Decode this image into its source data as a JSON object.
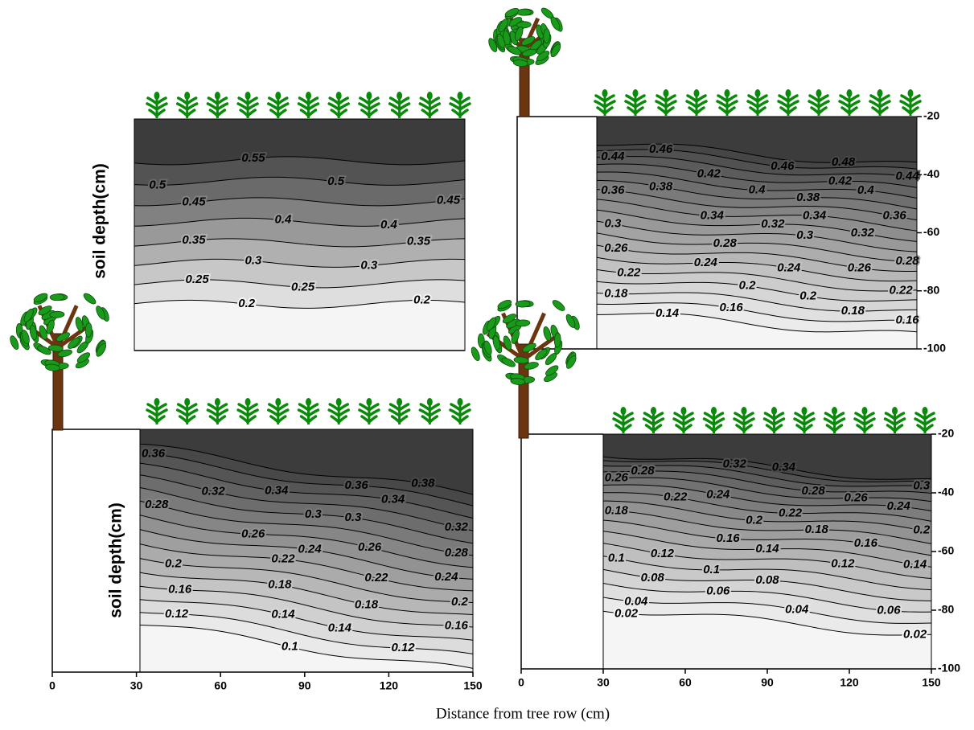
{
  "x_label": "Distance from tree row (cm)",
  "chart_data": [
    {
      "type": "contour",
      "y_label": "soil depth(cm)",
      "contour_labels": [
        0.5,
        0.55,
        0.5,
        0.45,
        0.4,
        0.4,
        0.45,
        0.35,
        0.35,
        0.3,
        0.3,
        0.25,
        0.25,
        0.2,
        0.2
      ]
    },
    {
      "type": "contour",
      "ylim": [
        -20,
        -100
      ],
      "yticks": [
        -20,
        -40,
        -60,
        -80,
        -100
      ],
      "contour_labels": [
        0.44,
        0.46,
        0.42,
        0.46,
        0.48,
        0.44,
        0.36,
        0.38,
        0.4,
        0.38,
        0.42,
        0.4,
        0.34,
        0.34,
        0.36,
        0.3,
        0.32,
        0.3,
        0.32,
        0.26,
        0.28,
        0.28,
        0.22,
        0.24,
        0.24,
        0.26,
        0.18,
        0.2,
        0.2,
        0.22,
        0.14,
        0.16,
        0.18,
        0.16
      ]
    },
    {
      "type": "contour",
      "y_label": "soil depth(cm)",
      "xlim": [
        0,
        150
      ],
      "xticks": [
        0,
        30,
        60,
        90,
        120,
        150
      ],
      "contour_labels": [
        0.36,
        0.32,
        0.34,
        0.36,
        0.34,
        0.38,
        0.28,
        0.3,
        0.3,
        0.32,
        0.26,
        0.26,
        0.28,
        0.2,
        0.24,
        0.22,
        0.22,
        0.24,
        0.16,
        0.18,
        0.18,
        0.2,
        0.12,
        0.14,
        0.14,
        0.16,
        0.1,
        0.12
      ]
    },
    {
      "type": "contour",
      "xlim": [
        0,
        150
      ],
      "xticks": [
        0,
        30,
        60,
        90,
        120,
        150
      ],
      "ylim": [
        -20,
        -100
      ],
      "yticks": [
        -20,
        -40,
        -60,
        -80,
        -100
      ],
      "contour_labels": [
        0.26,
        0.28,
        0.32,
        0.34,
        0.28,
        0.3,
        0.18,
        0.22,
        0.24,
        0.2,
        0.22,
        0.26,
        0.24,
        0.1,
        0.12,
        0.16,
        0.14,
        0.18,
        0.16,
        0.2,
        0.08,
        0.1,
        0.12,
        0.14,
        0.04,
        0.06,
        0.08,
        0.04,
        0.06,
        0.02,
        0.02
      ]
    }
  ]
}
